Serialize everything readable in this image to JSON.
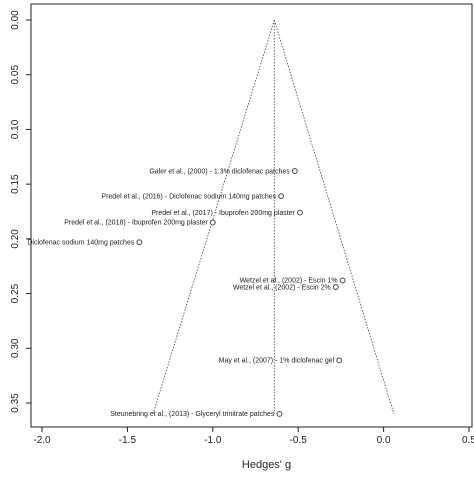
{
  "chart_data": {
    "type": "scatter",
    "subtype": "funnel-plot",
    "title": "",
    "xlabel": "Hedges' g",
    "ylabel": "",
    "xlim": [
      -2.05,
      0.5
    ],
    "ylim": [
      0.0,
      0.365
    ],
    "y_reversed": true,
    "x_ticks": [
      -2.0,
      -1.5,
      -1.0,
      -0.5,
      0.0,
      0.5
    ],
    "x_tick_labels": [
      "-2.0",
      "-1.5",
      "-1.0",
      "-0.5",
      "0.0",
      "0.5"
    ],
    "y_ticks": [
      0.0,
      0.05,
      0.1,
      0.15,
      0.2,
      0.25,
      0.3,
      0.35
    ],
    "y_tick_labels": [
      "0.00",
      "0.05",
      "0.10",
      "0.15",
      "0.20",
      "0.25",
      "0.30",
      "0.35"
    ],
    "grid": false,
    "legend": "none",
    "pooled_effect": -0.64,
    "funnel": {
      "apex": [
        -0.64,
        0.0
      ],
      "left_base": [
        -1.35,
        0.36
      ],
      "right_base": [
        0.06,
        0.36
      ]
    },
    "points": [
      {
        "label": "Galer et al., (2000) - 1.3% diclofenac patches",
        "x": -0.52,
        "y": 0.138
      },
      {
        "label": "Predel et al., (2016) - Diclofenac sodium 140mg patches",
        "x": -0.6,
        "y": 0.161
      },
      {
        "label": "Predel et al., (2017) - Ibuprofen 200mg plaster",
        "x": -0.49,
        "y": 0.176
      },
      {
        "label": "Predel et al., (2018) - Ibuprofen 200mg plaster",
        "x": -1.0,
        "y": 0.185
      },
      {
        "label": "Diclofenac sodium 140mg patches",
        "x": -1.43,
        "y": 0.203
      },
      {
        "label": "Wetzel et al., (2002) - Escin 1%",
        "x": -0.24,
        "y": 0.238
      },
      {
        "label": "Wetzel et al., (2002) - Escin 2%",
        "x": -0.28,
        "y": 0.244
      },
      {
        "label": "May et al., (2007) - 1% diclofenac gel",
        "x": -0.26,
        "y": 0.311
      },
      {
        "label": "Steunebring et al., (2013) - Glyceryl trinitrate patches",
        "x": -0.61,
        "y": 0.36
      }
    ],
    "colors": {
      "axis": "#222222",
      "point": "#555555",
      "point_fill": "#ffffff",
      "funnel": "#444444"
    }
  }
}
